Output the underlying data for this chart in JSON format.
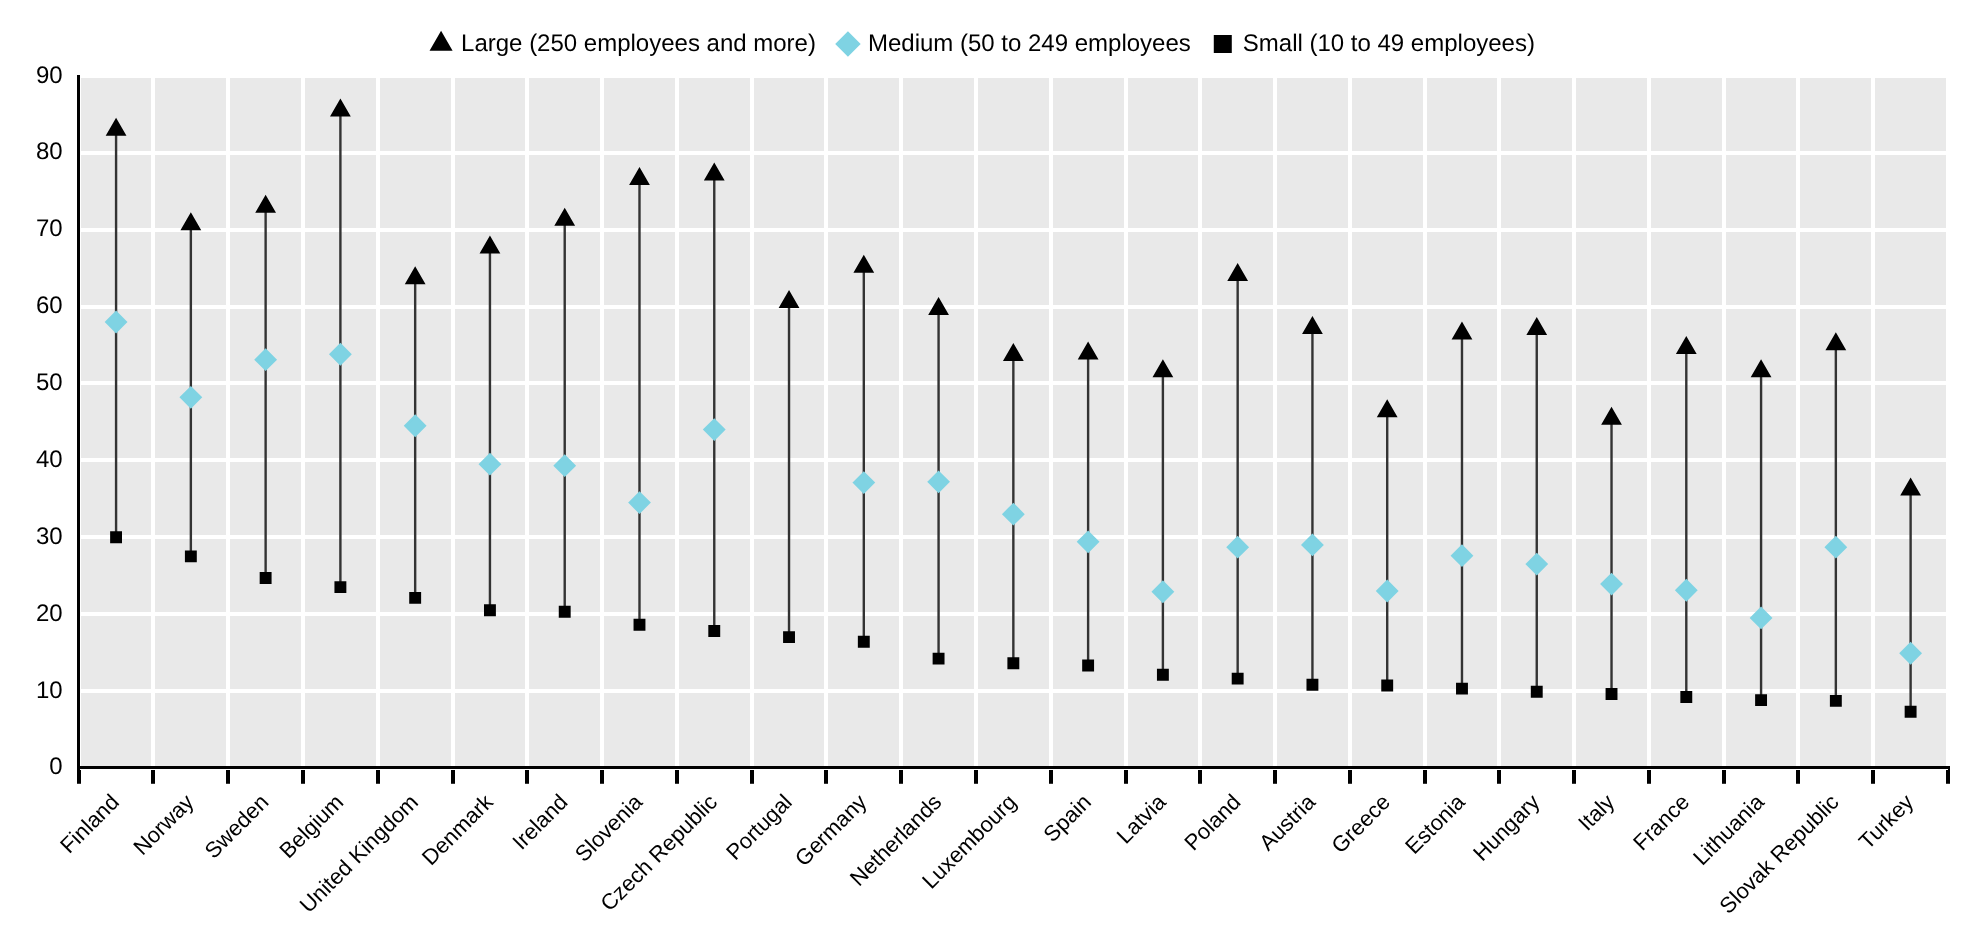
{
  "chart_data": {
    "type": "scatter",
    "categories": [
      "Finland",
      "Norway",
      "Sweden",
      "Belgium",
      "United Kingdom",
      "Denmark",
      "Ireland",
      "Slovenia",
      "Czech Republic",
      "Portugal",
      "Germany",
      "Netherlands",
      "Luxembourg",
      "Spain",
      "Latvia",
      "Poland",
      "Austria",
      "Greece",
      "Estonia",
      "Hungary",
      "Italy",
      "France",
      "Lithuania",
      "Slovak Republic",
      "Turkey"
    ],
    "series": [
      {
        "name": "Large (250 employees and more)",
        "color": "#000000",
        "marker": "triangle",
        "values": [
          83,
          70.7,
          73,
          85.5,
          63.7,
          67.7,
          71.3,
          76.6,
          77.2,
          60.6,
          65.2,
          59.7,
          53.7,
          53.9,
          51.6,
          64.1,
          57.2,
          46.4,
          56.5,
          57.1,
          45.4,
          54.6,
          51.6,
          55.1,
          36.2
        ]
      },
      {
        "name": "Medium (50 to 249 employees",
        "color": "#7fd3e3",
        "marker": "diamond",
        "values": [
          58,
          48.2,
          53.1,
          53.8,
          44.5,
          39.5,
          39.3,
          34.5,
          44,
          null,
          37.1,
          37.2,
          33,
          29.4,
          22.9,
          28.7,
          29,
          23,
          27.6,
          26.5,
          23.9,
          23.1,
          19.5,
          28.7,
          14.9
        ]
      },
      {
        "name": "Small (10 to 49 employees)",
        "color": "#000000",
        "marker": "square",
        "values": [
          30,
          27.5,
          24.7,
          23.5,
          22.1,
          20.5,
          20.3,
          18.6,
          17.8,
          17,
          16.4,
          14.2,
          13.6,
          13.3,
          12.1,
          11.6,
          10.8,
          10.7,
          10.3,
          9.9,
          9.6,
          9.2,
          8.8,
          8.7,
          7.3
        ]
      }
    ],
    "ylim": [
      0,
      90
    ],
    "yticks": [
      0,
      10,
      20,
      30,
      40,
      50,
      60,
      70,
      80,
      90
    ],
    "grid": true,
    "legend": "top"
  }
}
